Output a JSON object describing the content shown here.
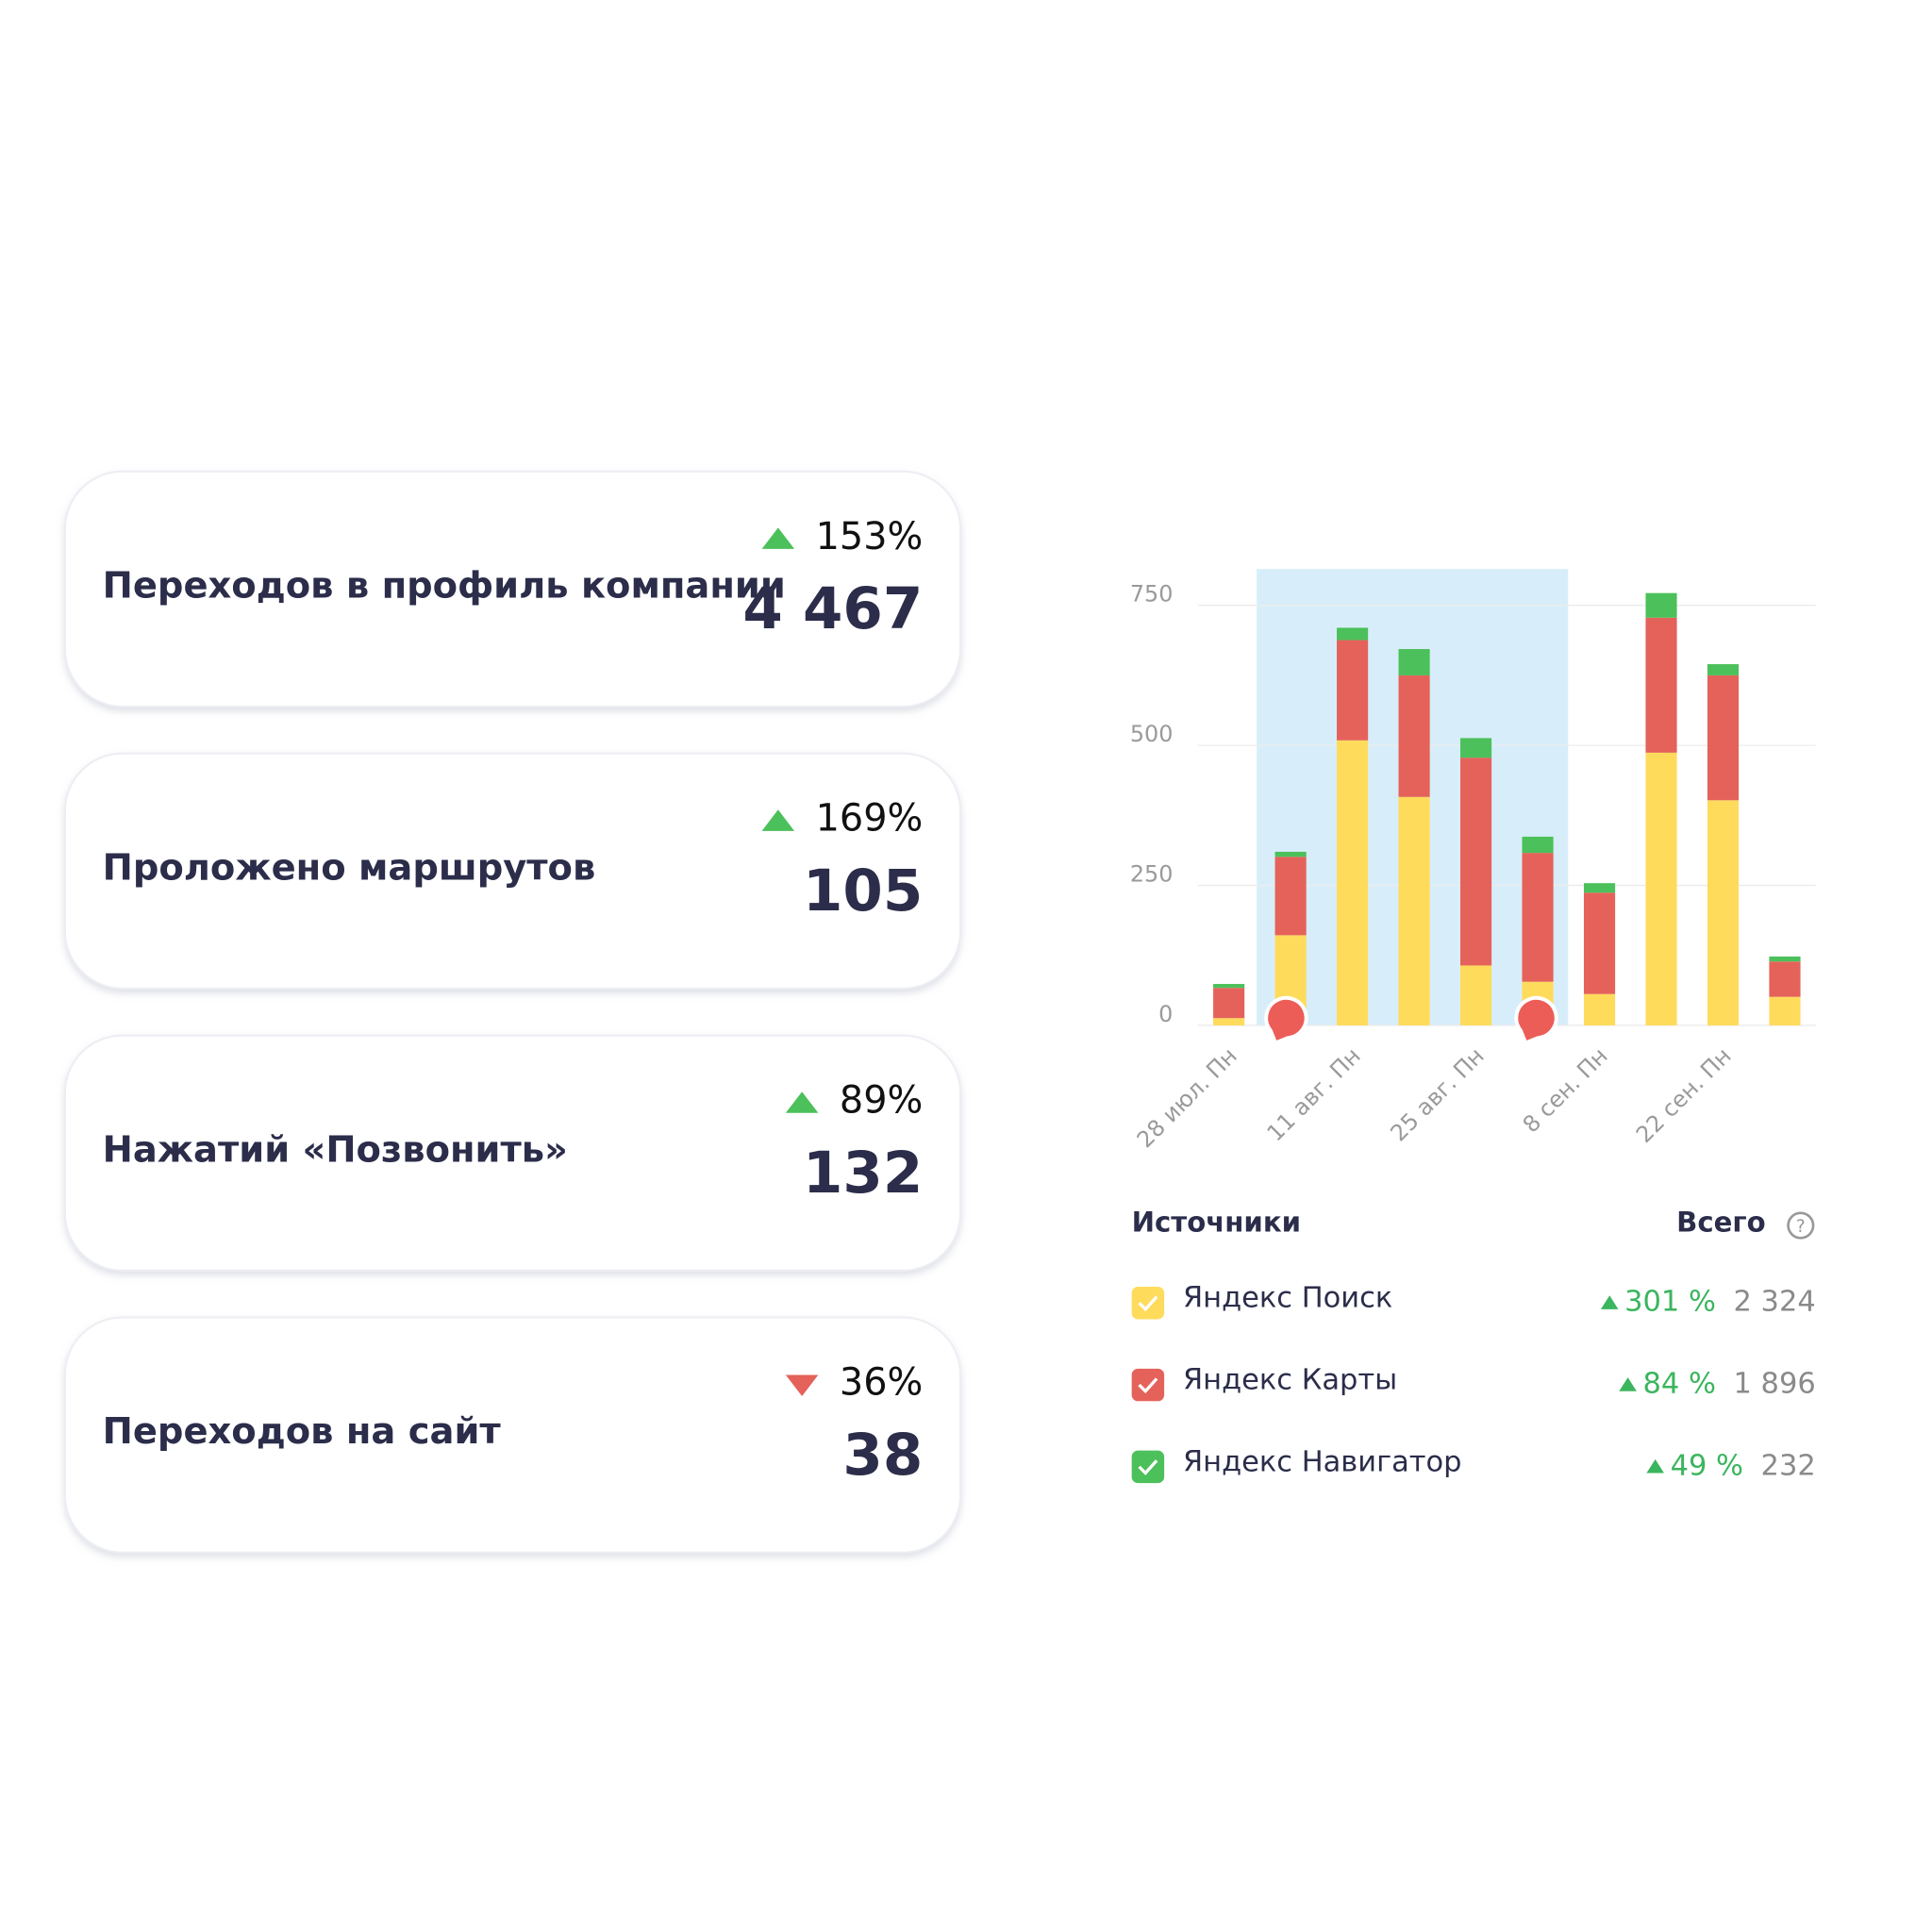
{
  "cards": [
    {
      "label": "Переходов в профиль компании",
      "change": "153%",
      "trend": "up",
      "value": "4 467"
    },
    {
      "label": "Проложено маршрутов",
      "change": "169%",
      "trend": "up",
      "value": "105"
    },
    {
      "label": "Нажатий «Позвонить»",
      "change": "89%",
      "trend": "up",
      "value": "132"
    },
    {
      "label": "Переходов на сайт",
      "change": "36%",
      "trend": "down",
      "value": "38"
    }
  ],
  "chart_data": {
    "type": "bar",
    "stacked": true,
    "categories": [
      "28 июл. Пн",
      null,
      "11 авг. Пн",
      null,
      "25 авг. Пн",
      null,
      "8 сен. Пн",
      null,
      "22 сен. Пн",
      null
    ],
    "series": [
      {
        "name": "Яндекс Поиск",
        "color": "#ffdb5c",
        "values": [
          13,
          161,
          509,
          408,
          107,
          78,
          56,
          487,
          402,
          51
        ]
      },
      {
        "name": "Яндекс Карты",
        "color": "#e5625a",
        "values": [
          54,
          140,
          179,
          217,
          371,
          230,
          181,
          241,
          223,
          63
        ]
      },
      {
        "name": "Яндекс Навигатор",
        "color": "#4cc05a",
        "values": [
          7,
          9,
          22,
          47,
          35,
          29,
          17,
          44,
          20,
          9
        ]
      }
    ],
    "ylim": [
      0,
      815
    ],
    "yticks": [
      0,
      250,
      500,
      750
    ],
    "grid": true
  },
  "legend": {
    "title": "Источники",
    "total_title": "Всего",
    "items": [
      {
        "change": "301 %",
        "total": "2 324"
      },
      {
        "change": "84 %",
        "total": "1 896"
      },
      {
        "change": "49 %",
        "total": "232"
      }
    ]
  }
}
